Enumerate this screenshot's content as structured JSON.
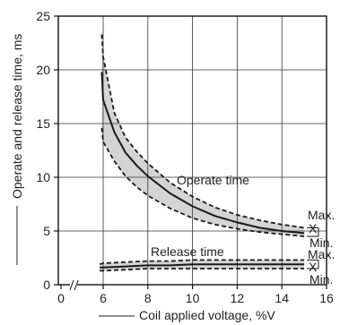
{
  "chart_data": {
    "type": "line",
    "xlabel": "Coil applied voltage, %V",
    "ylabel": "Operate and release time, ms",
    "xlim": [
      0,
      16
    ],
    "ylim": [
      0,
      25
    ],
    "x_axis_break": true,
    "xticks": [
      0,
      6,
      8,
      10,
      12,
      14,
      16
    ],
    "yticks": [
      0,
      5,
      10,
      15,
      20,
      25
    ],
    "grid": true,
    "series": [
      {
        "name": "Operate time",
        "x": [
          5.8,
          6,
          6.5,
          7,
          7.5,
          8,
          9,
          10,
          11,
          12,
          13,
          14,
          15
        ],
        "typ": [
          19.8,
          17.2,
          14.2,
          12.3,
          11.1,
          10.1,
          8.5,
          7.3,
          6.4,
          5.8,
          5.3,
          5.0,
          4.8
        ],
        "max": [
          23.3,
          21.2,
          16.0,
          13.7,
          12.4,
          11.3,
          9.5,
          8.2,
          7.2,
          6.5,
          6.0,
          5.6,
          5.3
        ],
        "min": [
          14.6,
          13.3,
          11.5,
          10.1,
          9.1,
          8.3,
          7.1,
          6.2,
          5.6,
          5.2,
          4.9,
          4.7,
          4.5
        ]
      },
      {
        "name": "Release time",
        "x": [
          5.5,
          6,
          7,
          8,
          9,
          10,
          11,
          12,
          13,
          14,
          15
        ],
        "typ": [
          1.6,
          1.6,
          1.7,
          1.8,
          1.8,
          1.9,
          1.9,
          1.9,
          1.9,
          1.9,
          1.9
        ],
        "max": [
          1.9,
          2.0,
          2.1,
          2.2,
          2.2,
          2.3,
          2.3,
          2.3,
          2.3,
          2.3,
          2.3
        ],
        "min": [
          1.3,
          1.3,
          1.4,
          1.5,
          1.5,
          1.5,
          1.5,
          1.5,
          1.5,
          1.5,
          1.5
        ]
      }
    ],
    "annotations": {
      "operate_label": "Operate time",
      "release_label": "Release time",
      "max_label": "Max.",
      "min_label": "Min.",
      "typ_marker": "X"
    },
    "colors": {
      "band": "#d4d4d4",
      "line": "#1a1a1a",
      "grid": "#333333"
    }
  }
}
